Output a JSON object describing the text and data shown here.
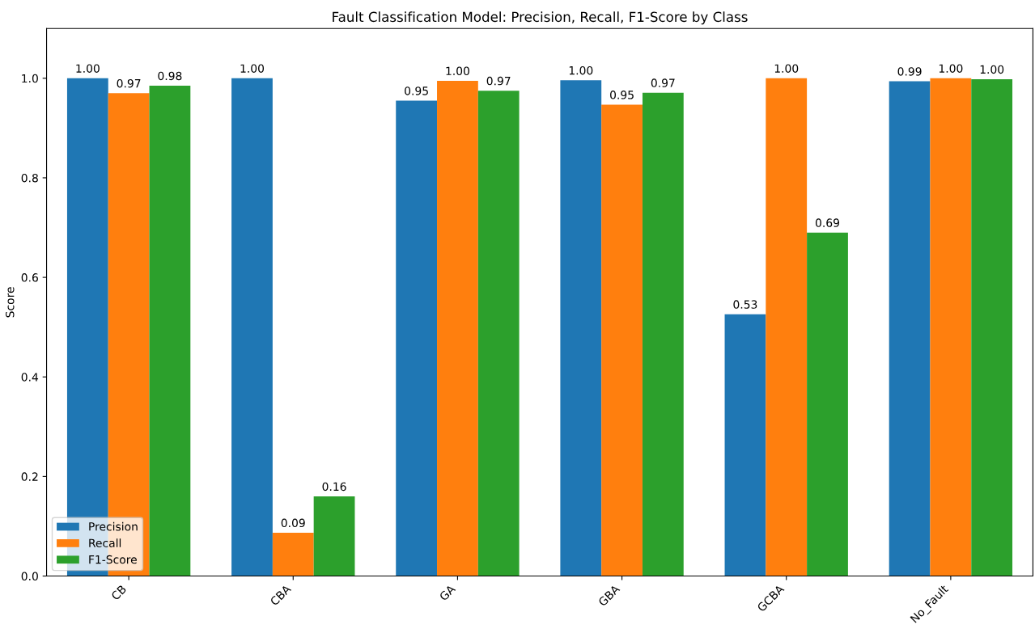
{
  "chart_data": {
    "type": "bar",
    "title": "Fault Classification Model: Precision, Recall, F1-Score by Class",
    "ylabel": "Score",
    "categories": [
      "CB",
      "CBA",
      "GA",
      "GBA",
      "GCBA",
      "No_Fault"
    ],
    "series": [
      {
        "name": "Precision",
        "color": "#1f77b4",
        "values": [
          1.0,
          1.0,
          0.955,
          0.996,
          0.526,
          0.994
        ],
        "value_labels": [
          "1.00",
          "1.00",
          "0.95",
          "1.00",
          "0.53",
          "0.99"
        ]
      },
      {
        "name": "Recall",
        "color": "#ff7f0e",
        "values": [
          0.97,
          0.087,
          0.995,
          0.947,
          1.0,
          1.0
        ],
        "value_labels": [
          "0.97",
          "0.09",
          "1.00",
          "0.95",
          "1.00",
          "1.00"
        ]
      },
      {
        "name": "F1-Score",
        "color": "#2ca02c",
        "values": [
          0.985,
          0.16,
          0.975,
          0.971,
          0.69,
          0.998
        ],
        "value_labels": [
          "0.98",
          "0.16",
          "0.97",
          "0.97",
          "0.69",
          "1.00"
        ]
      }
    ],
    "ylim": [
      0,
      1.1
    ],
    "yticks": [
      {
        "value": 0,
        "label": "0.0"
      },
      {
        "value": 0.2,
        "label": "0.2"
      },
      {
        "value": 0.4,
        "label": "0.4"
      },
      {
        "value": 0.6,
        "label": "0.6"
      },
      {
        "value": 0.8,
        "label": "0.8"
      },
      {
        "value": 1.0,
        "label": "1.0"
      }
    ],
    "grid": false,
    "legend": "lower left"
  }
}
